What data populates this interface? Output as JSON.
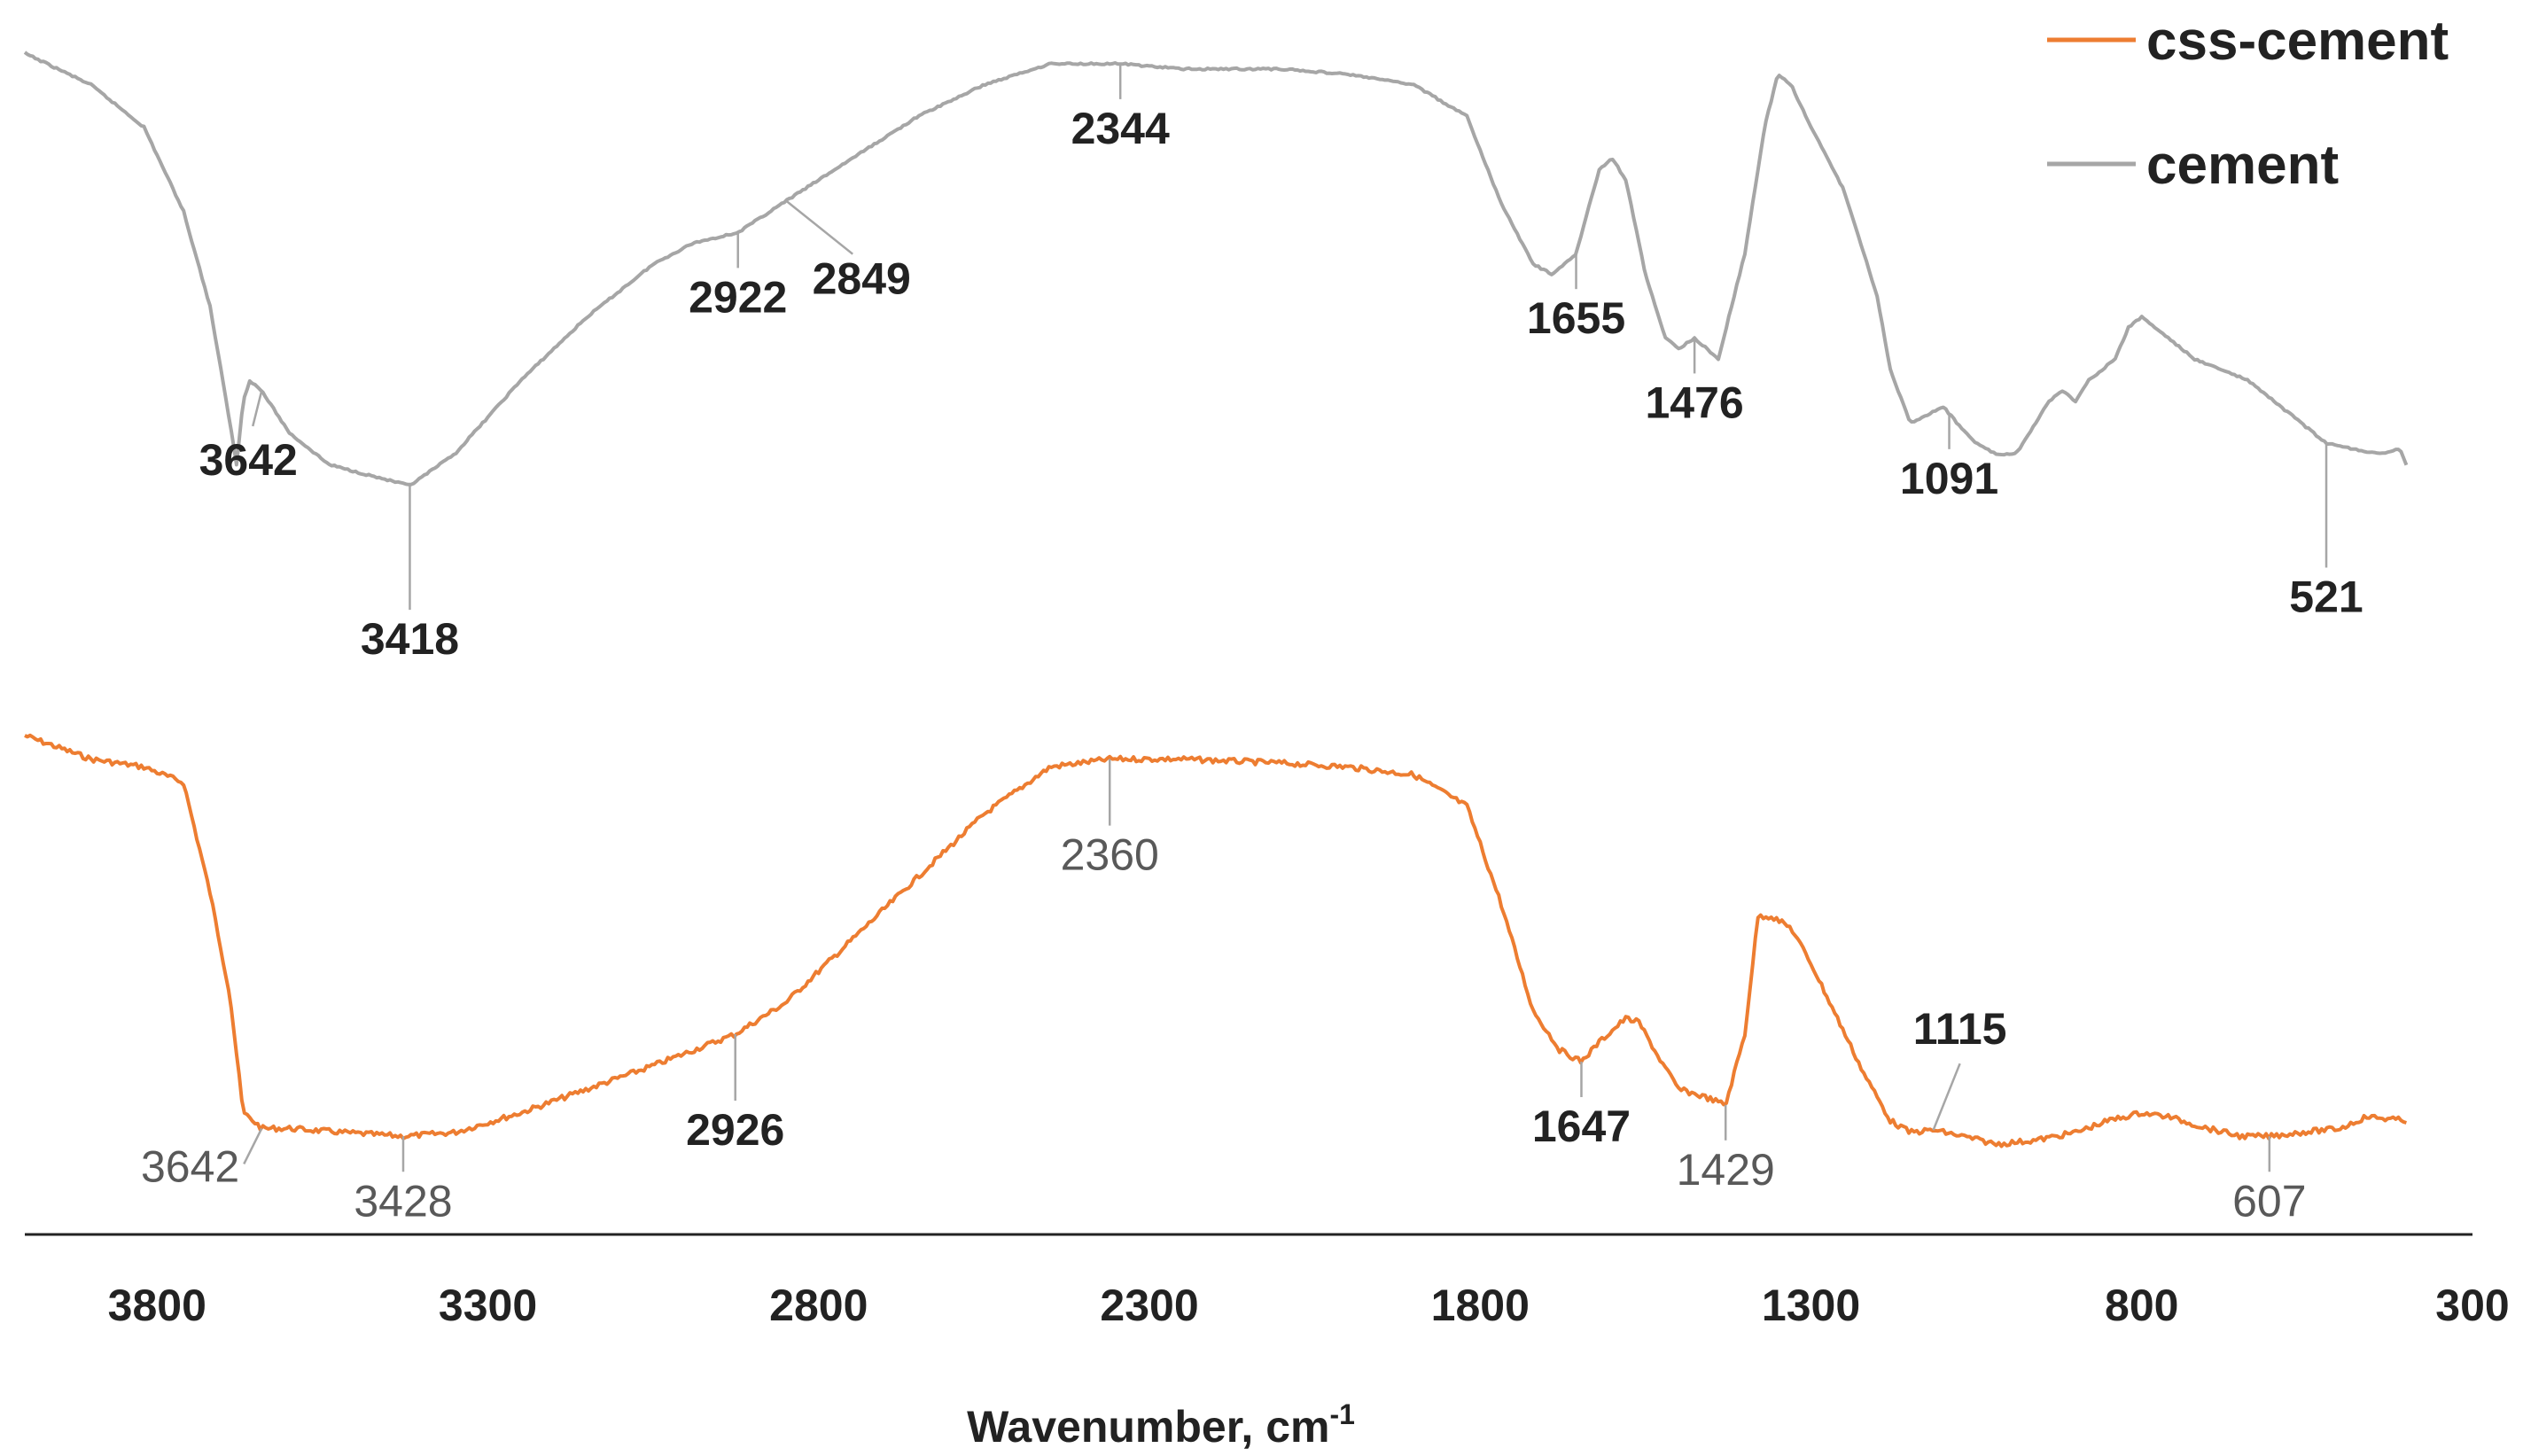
{
  "chart_data": {
    "type": "line",
    "title": "",
    "xlabel": "Wavenumber, cm",
    "xlabel_superscript": "-1",
    "ylabel": "",
    "x_reversed": true,
    "xlim": [
      4000,
      300
    ],
    "xticks": [
      "3800",
      "3300",
      "2800",
      "2300",
      "1800",
      "1300",
      "800",
      "300"
    ],
    "grid": false,
    "legend": "top-right",
    "series": [
      {
        "name": "css-cement",
        "color": "#ED7D31",
        "noise": 6,
        "points": [
          [
            4000,
            0.13
          ],
          [
            3900,
            0.1
          ],
          [
            3820,
            0.09
          ],
          [
            3760,
            0.07
          ],
          [
            3720,
            -0.07
          ],
          [
            3690,
            -0.2
          ],
          [
            3670,
            -0.35
          ],
          [
            3655,
            -0.36
          ],
          [
            3642,
            -0.37
          ],
          [
            3600,
            -0.37
          ],
          [
            3520,
            -0.375
          ],
          [
            3428,
            -0.38
          ],
          [
            3350,
            -0.375
          ],
          [
            3250,
            -0.35
          ],
          [
            3150,
            -0.32
          ],
          [
            3050,
            -0.29
          ],
          [
            2926,
            -0.25
          ],
          [
            2850,
            -0.21
          ],
          [
            2750,
            -0.13
          ],
          [
            2650,
            -0.05
          ],
          [
            2550,
            0.03
          ],
          [
            2450,
            0.09
          ],
          [
            2360,
            0.1
          ],
          [
            2250,
            0.1
          ],
          [
            2100,
            0.095
          ],
          [
            2000,
            0.09
          ],
          [
            1900,
            0.08
          ],
          [
            1820,
            0.04
          ],
          [
            1770,
            -0.08
          ],
          [
            1720,
            -0.22
          ],
          [
            1680,
            -0.27
          ],
          [
            1647,
            -0.285
          ],
          [
            1620,
            -0.26
          ],
          [
            1580,
            -0.23
          ],
          [
            1560,
            -0.235
          ],
          [
            1530,
            -0.28
          ],
          [
            1500,
            -0.32
          ],
          [
            1460,
            -0.33
          ],
          [
            1429,
            -0.34
          ],
          [
            1400,
            -0.25
          ],
          [
            1380,
            -0.1
          ],
          [
            1360,
            -0.1
          ],
          [
            1330,
            -0.115
          ],
          [
            1300,
            -0.16
          ],
          [
            1260,
            -0.23
          ],
          [
            1220,
            -0.3
          ],
          [
            1180,
            -0.36
          ],
          [
            1150,
            -0.375
          ],
          [
            1115,
            -0.372
          ],
          [
            1070,
            -0.38
          ],
          [
            1020,
            -0.39
          ],
          [
            960,
            -0.385
          ],
          [
            900,
            -0.375
          ],
          [
            850,
            -0.36
          ],
          [
            800,
            -0.35
          ],
          [
            760,
            -0.355
          ],
          [
            700,
            -0.37
          ],
          [
            650,
            -0.38
          ],
          [
            607,
            -0.38
          ],
          [
            560,
            -0.375
          ],
          [
            500,
            -0.37
          ],
          [
            460,
            -0.355
          ],
          [
            400,
            -0.36
          ]
        ]
      },
      {
        "name": "cement",
        "color": "#A6A6A6",
        "noise": 2,
        "points": [
          [
            4000,
            0.97
          ],
          [
            3900,
            0.94
          ],
          [
            3820,
            0.9
          ],
          [
            3760,
            0.82
          ],
          [
            3720,
            0.73
          ],
          [
            3690,
            0.62
          ],
          [
            3680,
            0.58
          ],
          [
            3670,
            0.64
          ],
          [
            3660,
            0.66
          ],
          [
            3642,
            0.65
          ],
          [
            3600,
            0.61
          ],
          [
            3540,
            0.58
          ],
          [
            3480,
            0.57
          ],
          [
            3418,
            0.56
          ],
          [
            3350,
            0.59
          ],
          [
            3250,
            0.66
          ],
          [
            3150,
            0.72
          ],
          [
            3050,
            0.77
          ],
          [
            2990,
            0.79
          ],
          [
            2922,
            0.8
          ],
          [
            2849,
            0.83
          ],
          [
            2750,
            0.87
          ],
          [
            2650,
            0.91
          ],
          [
            2550,
            0.94
          ],
          [
            2450,
            0.96
          ],
          [
            2344,
            0.96
          ],
          [
            2250,
            0.955
          ],
          [
            2100,
            0.955
          ],
          [
            2000,
            0.95
          ],
          [
            1900,
            0.94
          ],
          [
            1820,
            0.91
          ],
          [
            1770,
            0.83
          ],
          [
            1720,
            0.77
          ],
          [
            1690,
            0.76
          ],
          [
            1655,
            0.78
          ],
          [
            1620,
            0.86
          ],
          [
            1600,
            0.87
          ],
          [
            1580,
            0.85
          ],
          [
            1550,
            0.76
          ],
          [
            1520,
            0.7
          ],
          [
            1500,
            0.69
          ],
          [
            1476,
            0.7
          ],
          [
            1440,
            0.68
          ],
          [
            1400,
            0.78
          ],
          [
            1370,
            0.9
          ],
          [
            1350,
            0.95
          ],
          [
            1330,
            0.94
          ],
          [
            1300,
            0.9
          ],
          [
            1250,
            0.84
          ],
          [
            1200,
            0.74
          ],
          [
            1180,
            0.67
          ],
          [
            1150,
            0.62
          ],
          [
            1130,
            0.625
          ],
          [
            1100,
            0.635
          ],
          [
            1080,
            0.62
          ],
          [
            1050,
            0.6
          ],
          [
            1020,
            0.59
          ],
          [
            990,
            0.59
          ],
          [
            960,
            0.62
          ],
          [
            940,
            0.64
          ],
          [
            920,
            0.65
          ],
          [
            900,
            0.64
          ],
          [
            880,
            0.66
          ],
          [
            860,
            0.67
          ],
          [
            840,
            0.68
          ],
          [
            820,
            0.71
          ],
          [
            800,
            0.72
          ],
          [
            780,
            0.71
          ],
          [
            760,
            0.7
          ],
          [
            720,
            0.68
          ],
          [
            680,
            0.67
          ],
          [
            640,
            0.66
          ],
          [
            600,
            0.64
          ],
          [
            560,
            0.62
          ],
          [
            521,
            0.6
          ],
          [
            480,
            0.595
          ],
          [
            440,
            0.59
          ],
          [
            410,
            0.595
          ],
          [
            400,
            0.58
          ]
        ]
      }
    ],
    "annotations": [
      {
        "label": "3642",
        "series": "cement",
        "x": 3642,
        "style": "dark",
        "text_pos": "below-left"
      },
      {
        "label": "3418",
        "series": "cement",
        "x": 3418,
        "style": "dark",
        "text_pos": "below"
      },
      {
        "label": "2922",
        "series": "cement",
        "x": 2922,
        "style": "dark",
        "text_pos": "below"
      },
      {
        "label": "2849",
        "series": "cement",
        "x": 2849,
        "style": "dark",
        "text_pos": "below-right"
      },
      {
        "label": "2344",
        "series": "cement",
        "x": 2344,
        "style": "dark",
        "text_pos": "below"
      },
      {
        "label": "1655",
        "series": "cement",
        "x": 1655,
        "style": "dark",
        "text_pos": "below"
      },
      {
        "label": "1476",
        "series": "cement",
        "x": 1476,
        "style": "dark",
        "text_pos": "below"
      },
      {
        "label": "1091",
        "series": "cement",
        "x": 1091,
        "style": "dark",
        "text_pos": "below"
      },
      {
        "label": "521",
        "series": "cement",
        "x": 521,
        "style": "dark",
        "text_pos": "below"
      },
      {
        "label": "3642",
        "series": "css-cement",
        "x": 3642,
        "style": "light",
        "text_pos": "left"
      },
      {
        "label": "3428",
        "series": "css-cement",
        "x": 3428,
        "style": "light",
        "text_pos": "below"
      },
      {
        "label": "2926",
        "series": "css-cement",
        "x": 2926,
        "style": "dark",
        "text_pos": "below"
      },
      {
        "label": "2360",
        "series": "css-cement",
        "x": 2360,
        "style": "light",
        "text_pos": "below"
      },
      {
        "label": "1647",
        "series": "css-cement",
        "x": 1647,
        "style": "dark",
        "text_pos": "below"
      },
      {
        "label": "1429",
        "series": "css-cement",
        "x": 1429,
        "style": "light",
        "text_pos": "below"
      },
      {
        "label": "1115",
        "series": "css-cement",
        "x": 1115,
        "style": "dark",
        "text_pos": "above"
      },
      {
        "label": "607",
        "series": "css-cement",
        "x": 607,
        "style": "light",
        "text_pos": "below"
      }
    ]
  }
}
